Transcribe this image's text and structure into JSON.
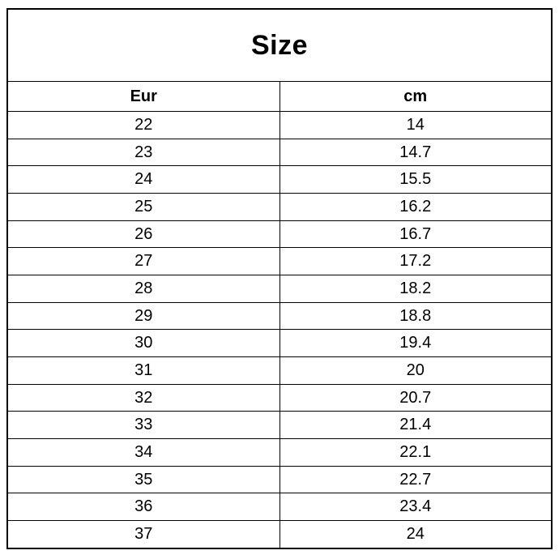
{
  "table": {
    "title": "Size",
    "columns": [
      "Eur",
      "cm"
    ],
    "rows": [
      [
        "22",
        "14"
      ],
      [
        "23",
        "14.7"
      ],
      [
        "24",
        "15.5"
      ],
      [
        "25",
        "16.2"
      ],
      [
        "26",
        "16.7"
      ],
      [
        "27",
        "17.2"
      ],
      [
        "28",
        "18.2"
      ],
      [
        "29",
        "18.8"
      ],
      [
        "30",
        "19.4"
      ],
      [
        "31",
        "20"
      ],
      [
        "32",
        "20.7"
      ],
      [
        "33",
        "21.4"
      ],
      [
        "34",
        "22.1"
      ],
      [
        "35",
        "22.7"
      ],
      [
        "36",
        "23.4"
      ],
      [
        "37",
        "24"
      ]
    ]
  },
  "chart_data": {
    "type": "table",
    "title": "Size",
    "columns": [
      "Eur",
      "cm"
    ],
    "rows": [
      [
        22,
        14
      ],
      [
        23,
        14.7
      ],
      [
        24,
        15.5
      ],
      [
        25,
        16.2
      ],
      [
        26,
        16.7
      ],
      [
        27,
        17.2
      ],
      [
        28,
        18.2
      ],
      [
        29,
        18.8
      ],
      [
        30,
        19.4
      ],
      [
        31,
        20
      ],
      [
        32,
        20.7
      ],
      [
        33,
        21.4
      ],
      [
        34,
        22.1
      ],
      [
        35,
        22.7
      ],
      [
        36,
        23.4
      ],
      [
        37,
        24
      ]
    ]
  },
  "colors": {
    "border": "#000000",
    "text": "#000000",
    "background": "#ffffff"
  }
}
